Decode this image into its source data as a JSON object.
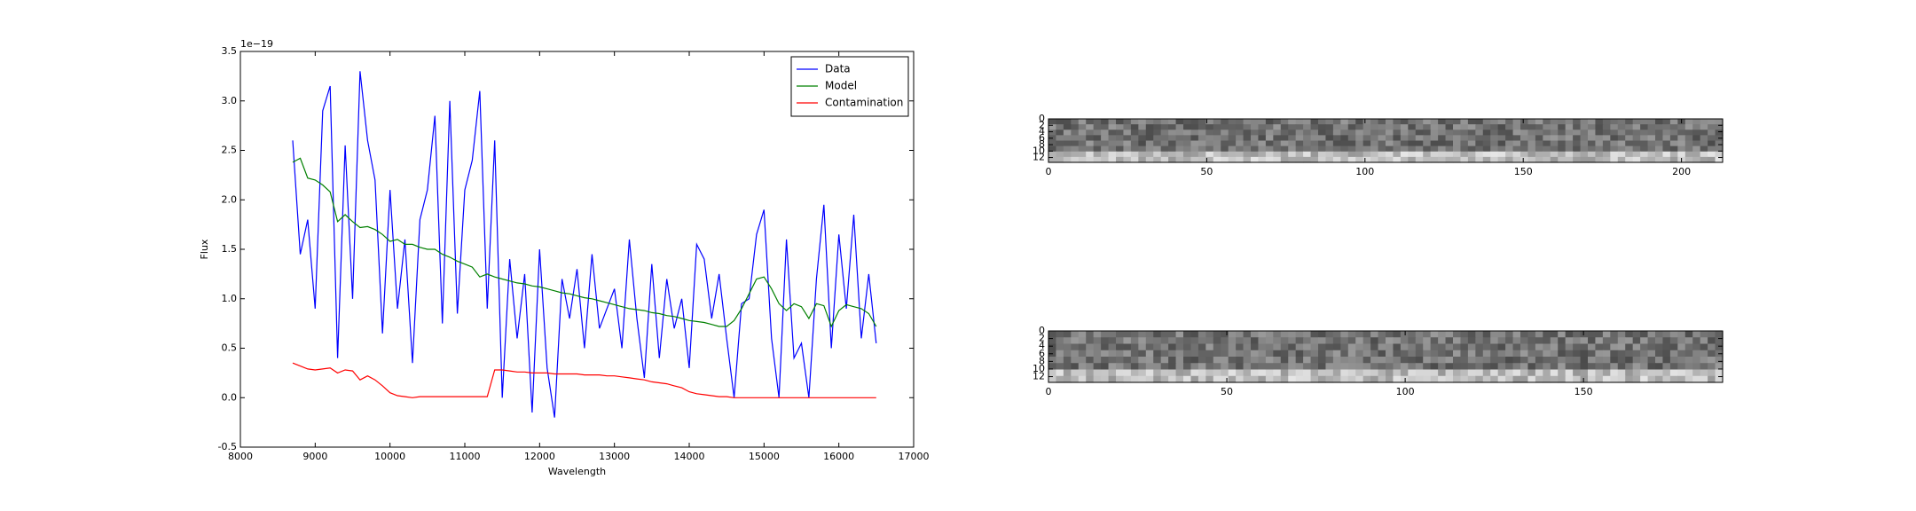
{
  "chart_data": [
    {
      "type": "line",
      "xlabel": "Wavelength",
      "ylabel": "Flux",
      "offset_label": "1e−19",
      "x": [
        8700,
        8800,
        8900,
        9000,
        9100,
        9200,
        9300,
        9400,
        9500,
        9600,
        9700,
        9800,
        9900,
        10000,
        10100,
        10200,
        10300,
        10400,
        10500,
        10600,
        10700,
        10800,
        10900,
        11000,
        11100,
        11200,
        11300,
        11400,
        11500,
        11600,
        11700,
        11800,
        11900,
        12000,
        12100,
        12200,
        12300,
        12400,
        12500,
        12600,
        12700,
        12800,
        12900,
        13000,
        13100,
        13200,
        13300,
        13400,
        13500,
        13600,
        13700,
        13800,
        13900,
        14000,
        14100,
        14200,
        14300,
        14400,
        14500,
        14600,
        14700,
        14800,
        14900,
        15000,
        15100,
        15200,
        15300,
        15400,
        15500,
        15600,
        15700,
        15800,
        15900,
        16000,
        16100,
        16200,
        16300,
        16400,
        16500
      ],
      "series": [
        {
          "name": "Data",
          "color": "#0000ff",
          "values": [
            2.6,
            1.45,
            1.8,
            0.9,
            2.9,
            3.15,
            0.4,
            2.55,
            1.0,
            3.3,
            2.6,
            2.2,
            0.65,
            2.1,
            0.9,
            1.6,
            0.35,
            1.8,
            2.1,
            2.85,
            0.75,
            3.0,
            0.85,
            2.1,
            2.4,
            3.1,
            0.9,
            2.6,
            0.0,
            1.4,
            0.6,
            1.25,
            -0.15,
            1.5,
            0.3,
            -0.2,
            1.2,
            0.8,
            1.3,
            0.5,
            1.45,
            0.7,
            0.9,
            1.1,
            0.5,
            1.6,
            0.8,
            0.2,
            1.35,
            0.4,
            1.2,
            0.7,
            1.0,
            0.3,
            1.55,
            1.4,
            0.8,
            1.25,
            0.6,
            0.0,
            0.95,
            1.0,
            1.65,
            1.9,
            0.6,
            0.0,
            1.6,
            0.4,
            0.55,
            0.0,
            1.2,
            1.95,
            0.5,
            1.65,
            0.9,
            1.85,
            0.6,
            1.25,
            0.55
          ]
        },
        {
          "name": "Model",
          "color": "#008000",
          "values": [
            2.38,
            2.42,
            2.22,
            2.2,
            2.15,
            2.08,
            1.78,
            1.85,
            1.78,
            1.72,
            1.73,
            1.7,
            1.65,
            1.58,
            1.6,
            1.55,
            1.55,
            1.52,
            1.5,
            1.5,
            1.45,
            1.42,
            1.38,
            1.35,
            1.32,
            1.22,
            1.25,
            1.22,
            1.2,
            1.18,
            1.16,
            1.15,
            1.13,
            1.12,
            1.1,
            1.08,
            1.06,
            1.05,
            1.03,
            1.01,
            1.0,
            0.98,
            0.96,
            0.94,
            0.92,
            0.9,
            0.89,
            0.88,
            0.86,
            0.85,
            0.83,
            0.82,
            0.8,
            0.78,
            0.77,
            0.76,
            0.74,
            0.72,
            0.72,
            0.78,
            0.9,
            1.05,
            1.2,
            1.22,
            1.1,
            0.95,
            0.88,
            0.95,
            0.92,
            0.8,
            0.95,
            0.93,
            0.72,
            0.88,
            0.94,
            0.92,
            0.9,
            0.85,
            0.72
          ]
        },
        {
          "name": "Contamination",
          "color": "#ff0000",
          "values": [
            0.35,
            0.32,
            0.29,
            0.28,
            0.29,
            0.3,
            0.25,
            0.28,
            0.27,
            0.18,
            0.22,
            0.18,
            0.12,
            0.05,
            0.02,
            0.01,
            0.0,
            0.01,
            0.01,
            0.01,
            0.01,
            0.01,
            0.01,
            0.01,
            0.01,
            0.01,
            0.01,
            0.28,
            0.28,
            0.27,
            0.26,
            0.26,
            0.25,
            0.25,
            0.25,
            0.24,
            0.24,
            0.24,
            0.24,
            0.23,
            0.23,
            0.23,
            0.22,
            0.22,
            0.21,
            0.2,
            0.19,
            0.18,
            0.16,
            0.15,
            0.14,
            0.12,
            0.1,
            0.06,
            0.04,
            0.03,
            0.02,
            0.01,
            0.01,
            0.0,
            0.0,
            0.0,
            0.0,
            0.0,
            0.0,
            0.0,
            0.0,
            0.0,
            0.0,
            0.0,
            0.0,
            0.0,
            0.0,
            0.0,
            0.0,
            0.0,
            0.0,
            0.0,
            0.0
          ]
        }
      ],
      "xlim": [
        8000,
        17000
      ],
      "xticks": [
        8000,
        9000,
        10000,
        11000,
        12000,
        13000,
        14000,
        15000,
        16000,
        17000
      ],
      "ylim": [
        -0.5,
        3.5
      ],
      "yticks": [
        -0.5,
        {
          "value": 0,
          "label": "0.0"
        },
        0.5,
        {
          "value": 1,
          "label": "1.0"
        },
        1.5,
        {
          "value": 2,
          "label": "2.0"
        },
        2.5,
        {
          "value": 3,
          "label": "3.0"
        },
        3.5
      ],
      "legend": "upper right"
    },
    {
      "type": "image",
      "xlim": [
        0,
        213
      ],
      "xticks": [
        0,
        50,
        100,
        150,
        200
      ],
      "ylim": [
        13.5,
        0
      ],
      "yticks": [
        0,
        2,
        4,
        6,
        8,
        10,
        12
      ]
    },
    {
      "type": "image",
      "xlim": [
        0,
        189
      ],
      "xticks": [
        0,
        50,
        100,
        150
      ],
      "ylim": [
        13.5,
        0
      ],
      "yticks": [
        0,
        2,
        4,
        6,
        8,
        10,
        12
      ]
    }
  ]
}
